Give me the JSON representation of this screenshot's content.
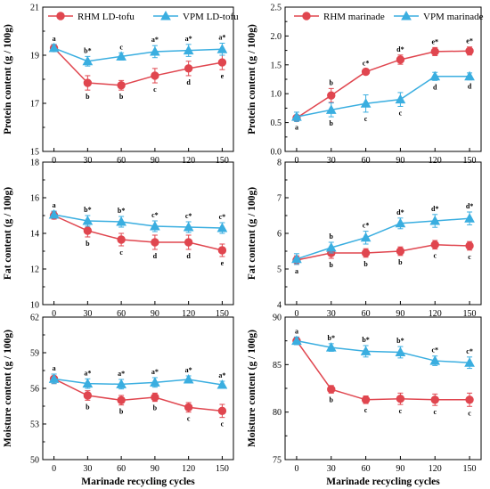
{
  "figure": {
    "xlabel": "Marinade recycling cycles",
    "colors": {
      "rhm": "#e0464f",
      "vpm": "#3aaee0",
      "axis": "#000000"
    }
  },
  "chart_data": [
    {
      "type": "line",
      "xlabel": "",
      "ylabel": "Protein content (g / 100g)",
      "x": [
        0,
        30,
        60,
        90,
        120,
        150
      ],
      "xticks": [
        "0",
        "30",
        "60",
        "90",
        "120",
        "150"
      ],
      "ylim": [
        15,
        21
      ],
      "yticks": [
        15,
        17,
        19,
        21
      ],
      "series": [
        {
          "name": "RHM LD-tofu",
          "marker": "circle",
          "values": [
            19.3,
            17.85,
            17.75,
            18.15,
            18.45,
            18.7
          ],
          "errors": [
            0.15,
            0.3,
            0.2,
            0.3,
            0.3,
            0.3
          ],
          "labels": [
            "",
            "b",
            "b",
            "c",
            "d",
            "e"
          ]
        },
        {
          "name": "VPM LD-tofu",
          "marker": "triangle",
          "values": [
            19.3,
            18.75,
            18.95,
            19.15,
            19.2,
            19.25
          ],
          "errors": [
            0.15,
            0.2,
            0.15,
            0.25,
            0.25,
            0.25
          ],
          "labels": [
            "a",
            "b*",
            "c",
            "a*",
            "a*",
            "a*"
          ]
        }
      ],
      "legend": "top"
    },
    {
      "type": "line",
      "xlabel": "",
      "ylabel": "Protein content (g / 100g)",
      "x": [
        0,
        30,
        60,
        90,
        120,
        150
      ],
      "xticks": [
        "0",
        "30",
        "60",
        "90",
        "120",
        "150"
      ],
      "ylim": [
        0.0,
        2.5
      ],
      "yticks": [
        "0.0",
        "0.5",
        "1.0",
        "1.5",
        "2.0",
        "2.5"
      ],
      "series": [
        {
          "name": "RHM marinade",
          "marker": "circle",
          "values": [
            0.58,
            0.97,
            1.38,
            1.59,
            1.73,
            1.74
          ],
          "errors": [
            0.05,
            0.12,
            0.05,
            0.08,
            0.07,
            0.07
          ],
          "labels": [
            "a",
            "b",
            "c*",
            "d*",
            "e*",
            "e*"
          ]
        },
        {
          "name": "VPM marinade",
          "marker": "triangle",
          "values": [
            0.6,
            0.72,
            0.83,
            0.9,
            1.3,
            1.3
          ],
          "errors": [
            0.08,
            0.12,
            0.15,
            0.12,
            0.07,
            0.06
          ],
          "labels": [
            "",
            "b",
            "c",
            "c",
            "d",
            "d"
          ]
        }
      ],
      "legend": "top"
    },
    {
      "type": "line",
      "xlabel": "",
      "ylabel": "Fat content (g / 100g)",
      "x": [
        0,
        30,
        60,
        90,
        120,
        150
      ],
      "xticks": [
        "0",
        "30",
        "60",
        "90",
        "120",
        "150"
      ],
      "ylim": [
        10,
        18
      ],
      "yticks": [
        10,
        12,
        14,
        16,
        18
      ],
      "series": [
        {
          "name": "RHM LD-tofu",
          "marker": "circle",
          "values": [
            15.0,
            14.15,
            13.65,
            13.5,
            13.5,
            13.05
          ],
          "errors": [
            0.2,
            0.35,
            0.35,
            0.4,
            0.4,
            0.35
          ],
          "labels": [
            "",
            "b",
            "c",
            "d",
            "d",
            "e"
          ]
        },
        {
          "name": "VPM LD-tofu",
          "marker": "triangle",
          "values": [
            15.05,
            14.7,
            14.65,
            14.4,
            14.35,
            14.3
          ],
          "errors": [
            0.2,
            0.3,
            0.3,
            0.3,
            0.3,
            0.3
          ],
          "labels": [
            "a",
            "b*",
            "b*",
            "c*",
            "c*",
            "c*"
          ]
        }
      ]
    },
    {
      "type": "line",
      "xlabel": "",
      "ylabel": "Fat content (g / 100g)",
      "x": [
        0,
        30,
        60,
        90,
        120,
        150
      ],
      "xticks": [
        "0",
        "30",
        "60",
        "90",
        "120",
        "150"
      ],
      "ylim": [
        4,
        8
      ],
      "yticks": [
        4,
        5,
        6,
        7,
        8
      ],
      "series": [
        {
          "name": "RHM marinade",
          "marker": "circle",
          "values": [
            5.25,
            5.45,
            5.45,
            5.5,
            5.68,
            5.65
          ],
          "errors": [
            0.12,
            0.15,
            0.12,
            0.12,
            0.12,
            0.12
          ],
          "labels": [
            "a",
            "b",
            "b",
            "b",
            "c",
            "c"
          ]
        },
        {
          "name": "VPM marinade",
          "marker": "triangle",
          "values": [
            5.28,
            5.6,
            5.88,
            6.28,
            6.35,
            6.42
          ],
          "errors": [
            0.15,
            0.15,
            0.18,
            0.15,
            0.18,
            0.18
          ],
          "labels": [
            "",
            "b",
            "c*",
            "d*",
            "d*",
            "d*"
          ]
        }
      ]
    },
    {
      "type": "line",
      "xlabel": "Marinade recycling cycles",
      "ylabel": "Moisture content (g / 100g)",
      "x": [
        0,
        30,
        60,
        90,
        120,
        150
      ],
      "xticks": [
        "0",
        "30",
        "60",
        "90",
        "120",
        "150"
      ],
      "ylim": [
        50,
        62
      ],
      "yticks": [
        50,
        53,
        56,
        59,
        62
      ],
      "series": [
        {
          "name": "RHM LD-tofu",
          "marker": "circle",
          "values": [
            56.8,
            55.4,
            55.0,
            55.25,
            54.4,
            54.1
          ],
          "errors": [
            0.4,
            0.4,
            0.4,
            0.35,
            0.4,
            0.55
          ],
          "labels": [
            "",
            "b",
            "b",
            "b",
            "c",
            "c"
          ]
        },
        {
          "name": "VPM LD-tofu",
          "marker": "triangle",
          "values": [
            56.8,
            56.4,
            56.35,
            56.5,
            56.75,
            56.3
          ],
          "errors": [
            0.4,
            0.4,
            0.4,
            0.4,
            0.3,
            0.3
          ],
          "labels": [
            "a",
            "a*",
            "a*",
            "a*",
            "a*",
            "a*"
          ]
        }
      ]
    },
    {
      "type": "line",
      "xlabel": "Marinade recycling cycles",
      "ylabel": "Moisture content (g / 100g)",
      "x": [
        0,
        30,
        60,
        90,
        120,
        150
      ],
      "xticks": [
        "0",
        "30",
        "60",
        "90",
        "120",
        "150"
      ],
      "ylim": [
        75,
        90
      ],
      "yticks": [
        75,
        80,
        85,
        90
      ],
      "series": [
        {
          "name": "RHM marinade",
          "marker": "circle",
          "values": [
            87.5,
            82.4,
            81.3,
            81.4,
            81.3,
            81.3
          ],
          "errors": [
            0.4,
            0.4,
            0.4,
            0.6,
            0.6,
            0.7
          ],
          "labels": [
            "",
            "b",
            "c",
            "c",
            "c",
            "c"
          ]
        },
        {
          "name": "VPM marinade",
          "marker": "triangle",
          "values": [
            87.5,
            86.8,
            86.4,
            86.3,
            85.4,
            85.2
          ],
          "errors": [
            0.4,
            0.4,
            0.6,
            0.6,
            0.5,
            0.6
          ],
          "labels": [
            "a",
            "b*",
            "b*",
            "b*",
            "c*",
            "c*"
          ]
        }
      ]
    }
  ]
}
